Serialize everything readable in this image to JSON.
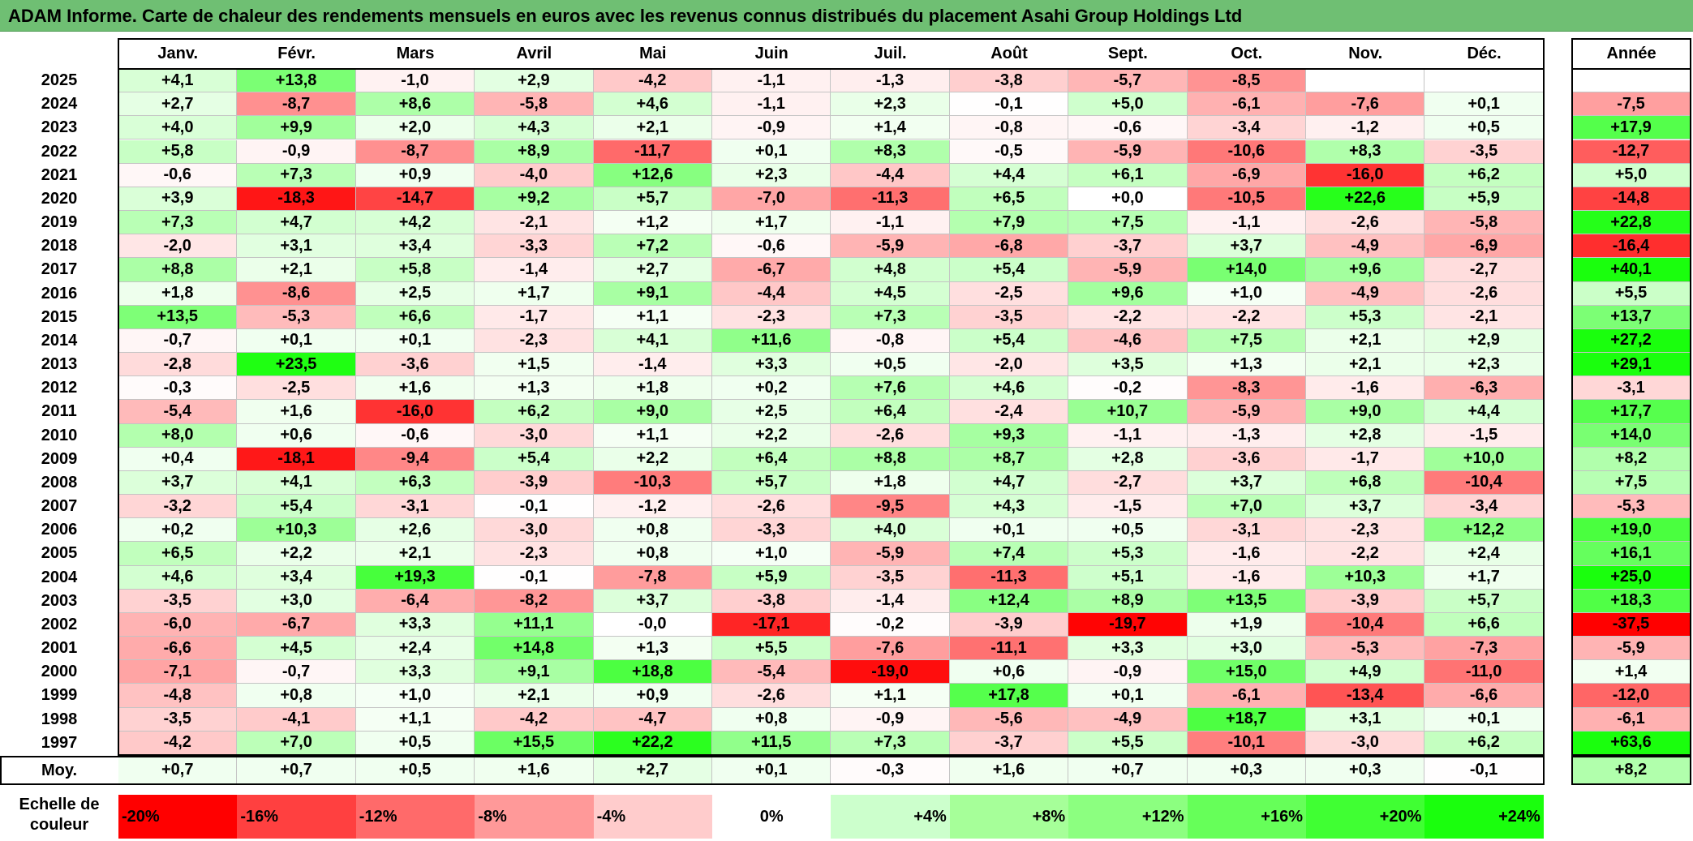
{
  "title": "ADAM Informe. Carte de chaleur des rendements mensuels en euros avec les revenus connus distribués du placement Asahi Group Holdings Ltd",
  "chart_data": {
    "type": "heatmap",
    "months": [
      "Janv.",
      "Févr.",
      "Mars",
      "Avril",
      "Mai",
      "Juin",
      "Juil.",
      "Août",
      "Sept.",
      "Oct.",
      "Nov.",
      "Déc."
    ],
    "annual_header": "Année",
    "rows": [
      {
        "year": "2025",
        "values": [
          "+4,1",
          "+13,8",
          "-1,0",
          "+2,9",
          "-4,2",
          "-1,1",
          "-1,3",
          "-3,8",
          "-5,7",
          "-8,5",
          "",
          ""
        ],
        "annual": ""
      },
      {
        "year": "2024",
        "values": [
          "+2,7",
          "-8,7",
          "+8,6",
          "-5,8",
          "+4,6",
          "-1,1",
          "+2,3",
          "-0,1",
          "+5,0",
          "-6,1",
          "-7,6",
          "+0,1"
        ],
        "annual": "-7,5"
      },
      {
        "year": "2023",
        "values": [
          "+4,0",
          "+9,9",
          "+2,0",
          "+4,3",
          "+2,1",
          "-0,9",
          "+1,4",
          "-0,8",
          "-0,6",
          "-3,4",
          "-1,2",
          "+0,5"
        ],
        "annual": "+17,9"
      },
      {
        "year": "2022",
        "values": [
          "+5,8",
          "-0,9",
          "-8,7",
          "+8,9",
          "-11,7",
          "+0,1",
          "+8,3",
          "-0,5",
          "-5,9",
          "-10,6",
          "+8,3",
          "-3,5"
        ],
        "annual": "-12,7"
      },
      {
        "year": "2021",
        "values": [
          "-0,6",
          "+7,3",
          "+0,9",
          "-4,0",
          "+12,6",
          "+2,3",
          "-4,4",
          "+4,4",
          "+6,1",
          "-6,9",
          "-16,0",
          "+6,2"
        ],
        "annual": "+5,0"
      },
      {
        "year": "2020",
        "values": [
          "+3,9",
          "-18,3",
          "-14,7",
          "+9,2",
          "+5,7",
          "-7,0",
          "-11,3",
          "+6,5",
          "+0,0",
          "-10,5",
          "+22,6",
          "+5,9"
        ],
        "annual": "-14,8"
      },
      {
        "year": "2019",
        "values": [
          "+7,3",
          "+4,7",
          "+4,2",
          "-2,1",
          "+1,2",
          "+1,7",
          "-1,1",
          "+7,9",
          "+7,5",
          "-1,1",
          "-2,6",
          "-5,8"
        ],
        "annual": "+22,8"
      },
      {
        "year": "2018",
        "values": [
          "-2,0",
          "+3,1",
          "+3,4",
          "-3,3",
          "+7,2",
          "-0,6",
          "-5,9",
          "-6,8",
          "-3,7",
          "+3,7",
          "-4,9",
          "-6,9"
        ],
        "annual": "-16,4"
      },
      {
        "year": "2017",
        "values": [
          "+8,8",
          "+2,1",
          "+5,8",
          "-1,4",
          "+2,7",
          "-6,7",
          "+4,8",
          "+5,4",
          "-5,9",
          "+14,0",
          "+9,6",
          "-2,7"
        ],
        "annual": "+40,1"
      },
      {
        "year": "2016",
        "values": [
          "+1,8",
          "-8,6",
          "+2,5",
          "+1,7",
          "+9,1",
          "-4,4",
          "+4,5",
          "-2,5",
          "+9,6",
          "+1,0",
          "-4,9",
          "-2,6"
        ],
        "annual": "+5,5"
      },
      {
        "year": "2015",
        "values": [
          "+13,5",
          "-5,3",
          "+6,6",
          "-1,7",
          "+1,1",
          "-2,3",
          "+7,3",
          "-3,5",
          "-2,2",
          "-2,2",
          "+5,3",
          "-2,1"
        ],
        "annual": "+13,7"
      },
      {
        "year": "2014",
        "values": [
          "-0,7",
          "+0,1",
          "+0,1",
          "-2,3",
          "+4,1",
          "+11,6",
          "-0,8",
          "+5,4",
          "-4,6",
          "+7,5",
          "+2,1",
          "+2,9"
        ],
        "annual": "+27,2"
      },
      {
        "year": "2013",
        "values": [
          "-2,8",
          "+23,5",
          "-3,6",
          "+1,5",
          "-1,4",
          "+3,3",
          "+0,5",
          "-2,0",
          "+3,5",
          "+1,3",
          "+2,1",
          "+2,3"
        ],
        "annual": "+29,1"
      },
      {
        "year": "2012",
        "values": [
          "-0,3",
          "-2,5",
          "+1,6",
          "+1,3",
          "+1,8",
          "+0,2",
          "+7,6",
          "+4,6",
          "-0,2",
          "-8,3",
          "-1,6",
          "-6,3"
        ],
        "annual": "-3,1"
      },
      {
        "year": "2011",
        "values": [
          "-5,4",
          "+1,6",
          "-16,0",
          "+6,2",
          "+9,0",
          "+2,5",
          "+6,4",
          "-2,4",
          "+10,7",
          "-5,9",
          "+9,0",
          "+4,4"
        ],
        "annual": "+17,7"
      },
      {
        "year": "2010",
        "values": [
          "+8,0",
          "+0,6",
          "-0,6",
          "-3,0",
          "+1,1",
          "+2,2",
          "-2,6",
          "+9,3",
          "-1,1",
          "-1,3",
          "+2,8",
          "-1,5"
        ],
        "annual": "+14,0"
      },
      {
        "year": "2009",
        "values": [
          "+0,4",
          "-18,1",
          "-9,4",
          "+5,4",
          "+2,2",
          "+6,4",
          "+8,8",
          "+8,7",
          "+2,8",
          "-3,6",
          "-1,7",
          "+10,0"
        ],
        "annual": "+8,2"
      },
      {
        "year": "2008",
        "values": [
          "+3,7",
          "+4,1",
          "+6,3",
          "-3,9",
          "-10,3",
          "+5,7",
          "+1,8",
          "+4,7",
          "-2,7",
          "+3,7",
          "+6,8",
          "-10,4"
        ],
        "annual": "+7,5"
      },
      {
        "year": "2007",
        "values": [
          "-3,2",
          "+5,4",
          "-3,1",
          "-0,1",
          "-1,2",
          "-2,6",
          "-9,5",
          "+4,3",
          "-1,5",
          "+7,0",
          "+3,7",
          "-3,4"
        ],
        "annual": "-5,3"
      },
      {
        "year": "2006",
        "values": [
          "+0,2",
          "+10,3",
          "+2,6",
          "-3,0",
          "+0,8",
          "-3,3",
          "+4,0",
          "+0,1",
          "+0,5",
          "-3,1",
          "-2,3",
          "+12,2"
        ],
        "annual": "+19,0"
      },
      {
        "year": "2005",
        "values": [
          "+6,5",
          "+2,2",
          "+2,1",
          "-2,3",
          "+0,8",
          "+1,0",
          "-5,9",
          "+7,4",
          "+5,3",
          "-1,6",
          "-2,2",
          "+2,4"
        ],
        "annual": "+16,1"
      },
      {
        "year": "2004",
        "values": [
          "+4,6",
          "+3,4",
          "+19,3",
          "-0,1",
          "-7,8",
          "+5,9",
          "-3,5",
          "-11,3",
          "+5,1",
          "-1,6",
          "+10,3",
          "+1,7"
        ],
        "annual": "+25,0"
      },
      {
        "year": "2003",
        "values": [
          "-3,5",
          "+3,0",
          "-6,4",
          "-8,2",
          "+3,7",
          "-3,8",
          "-1,4",
          "+12,4",
          "+8,9",
          "+13,5",
          "-3,9",
          "+5,7"
        ],
        "annual": "+18,3"
      },
      {
        "year": "2002",
        "values": [
          "-6,0",
          "-6,7",
          "+3,3",
          "+11,1",
          "-0,0",
          "-17,1",
          "-0,2",
          "-3,9",
          "-19,7",
          "+1,9",
          "-10,4",
          "+6,6"
        ],
        "annual": "-37,5"
      },
      {
        "year": "2001",
        "values": [
          "-6,6",
          "+4,5",
          "+2,4",
          "+14,8",
          "+1,3",
          "+5,5",
          "-7,6",
          "-11,1",
          "+3,3",
          "+3,0",
          "-5,3",
          "-7,3"
        ],
        "annual": "-5,9"
      },
      {
        "year": "2000",
        "values": [
          "-7,1",
          "-0,7",
          "+3,3",
          "+9,1",
          "+18,8",
          "-5,4",
          "-19,0",
          "+0,6",
          "-0,9",
          "+15,0",
          "+4,9",
          "-11,0"
        ],
        "annual": "+1,4"
      },
      {
        "year": "1999",
        "values": [
          "-4,8",
          "+0,8",
          "+1,0",
          "+2,1",
          "+0,9",
          "-2,6",
          "+1,1",
          "+17,8",
          "+0,1",
          "-6,1",
          "-13,4",
          "-6,6"
        ],
        "annual": "-12,0"
      },
      {
        "year": "1998",
        "values": [
          "-3,5",
          "-4,1",
          "+1,1",
          "-4,2",
          "-4,7",
          "+0,8",
          "-0,9",
          "-5,6",
          "-4,9",
          "+18,7",
          "+3,1",
          "+0,1"
        ],
        "annual": "-6,1"
      },
      {
        "year": "1997",
        "values": [
          "-4,2",
          "+7,0",
          "+0,5",
          "+15,5",
          "+22,2",
          "+11,5",
          "+7,3",
          "-3,7",
          "+5,5",
          "-10,1",
          "-3,0",
          "+6,2"
        ],
        "annual": "+63,6"
      }
    ],
    "average": {
      "label": "Moy.",
      "values": [
        "+0,7",
        "+0,7",
        "+0,5",
        "+1,6",
        "+2,7",
        "+0,1",
        "-0,3",
        "+1,6",
        "+0,7",
        "+0,3",
        "+0,3",
        "-0,1"
      ],
      "annual": "+8,2"
    },
    "color_scale": {
      "label": "Echelle de couleur",
      "items": [
        {
          "label": "-20%",
          "value": -20,
          "color": "#ff0000"
        },
        {
          "label": "-16%",
          "value": -16,
          "color": "#ff4040"
        },
        {
          "label": "-12%",
          "value": -12,
          "color": "#ff6a6a"
        },
        {
          "label": "-8%",
          "value": -8,
          "color": "#ff9999"
        },
        {
          "label": "-4%",
          "value": -4,
          "color": "#ffcccc"
        },
        {
          "label": "0%",
          "value": 0,
          "color": "#ffffff"
        },
        {
          "label": "+4%",
          "value": 4,
          "color": "#ccffcc"
        },
        {
          "label": "+8%",
          "value": 8,
          "color": "#a6ff99"
        },
        {
          "label": "+12%",
          "value": 12,
          "color": "#8cff80"
        },
        {
          "label": "+16%",
          "value": 16,
          "color": "#66ff59"
        },
        {
          "label": "+20%",
          "value": 20,
          "color": "#40ff33"
        },
        {
          "label": "+24%",
          "value": 24,
          "color": "#1aff0d"
        }
      ]
    }
  }
}
